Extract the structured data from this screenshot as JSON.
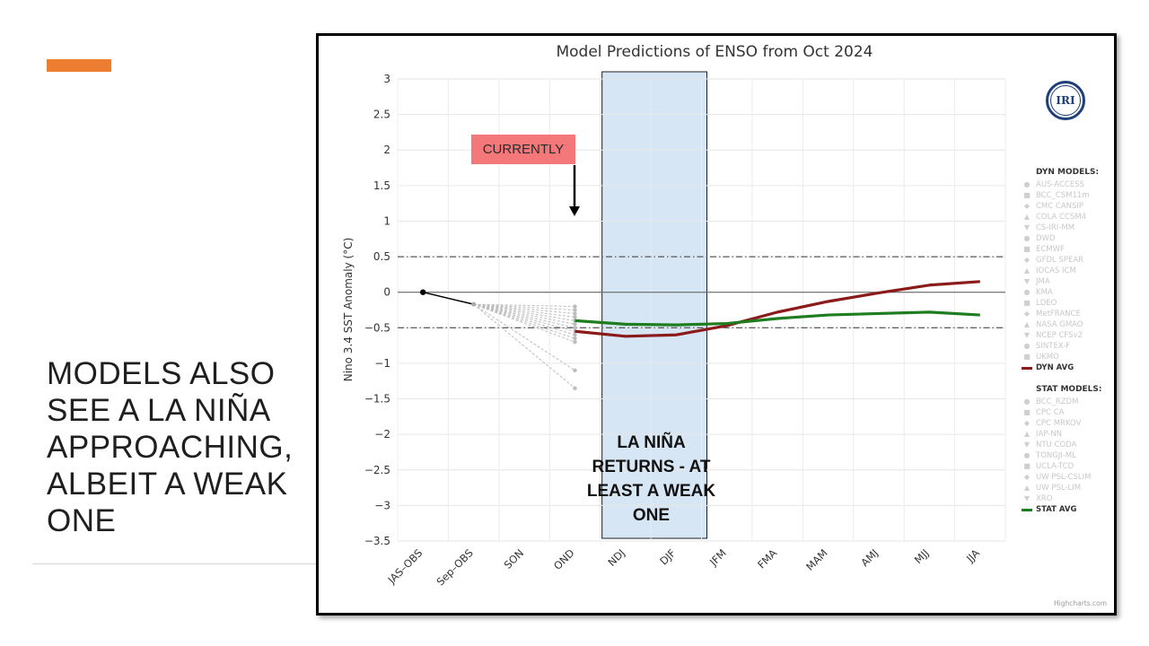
{
  "slide": {
    "title": "MODELS ALSO SEE A LA NIÑA APPROACHING, ALBEIT A WEAK ONE",
    "accent_color": "#ed7d31"
  },
  "callouts": {
    "currently": "CURRENTLY",
    "la_nina": "LA NIÑA RETURNS - AT LEAST A WEAK ONE",
    "currently_color": "#f4777a",
    "highlight_color": "#d6e6f4"
  },
  "logo": {
    "text": "IRI",
    "icon": "iri-logo-icon"
  },
  "credits": "Highcharts.com",
  "chart_data": {
    "type": "line",
    "title": "Model Predictions of ENSO from Oct 2024",
    "ylabel": "Nino 3.4 SST Anomaly (°C)",
    "xlabel": "",
    "categories": [
      "JAS–OBS",
      "Sep–OBS",
      "SON",
      "OND",
      "NDJ",
      "DJF",
      "JFM",
      "FMA",
      "MAM",
      "AMJ",
      "MJJ",
      "JJA"
    ],
    "ylim": [
      -3.5,
      3
    ],
    "yticks": [
      3,
      2.5,
      2,
      1.5,
      1,
      0.5,
      0,
      -0.5,
      -1,
      -1.5,
      -2,
      -2.5,
      -3,
      -3.5
    ],
    "threshold_lines": [
      0.5,
      -0.5
    ],
    "grid": true,
    "highlight_range": [
      "NDJ",
      "JFM"
    ],
    "observed": {
      "name": "",
      "x": [
        "JAS–OBS",
        "Sep–OBS"
      ],
      "values": [
        0.0,
        -0.17
      ],
      "color": "#000000"
    },
    "series": [
      {
        "name": "DYN AVG",
        "color": "#8b1a1a",
        "x": [
          "OND",
          "NDJ",
          "DJF",
          "JFM",
          "FMA",
          "MAM",
          "AMJ",
          "MJJ",
          "JJA"
        ],
        "values": [
          -0.55,
          -0.62,
          -0.6,
          -0.47,
          -0.28,
          -0.13,
          -0.01,
          0.1,
          0.15
        ]
      },
      {
        "name": "STAT AVG",
        "color": "#1e7d1e",
        "x": [
          "OND",
          "NDJ",
          "DJF",
          "JFM",
          "FMA",
          "MAM",
          "AMJ",
          "MJJ",
          "JJA"
        ],
        "values": [
          -0.4,
          -0.45,
          -0.46,
          -0.44,
          -0.37,
          -0.32,
          -0.3,
          -0.28,
          -0.32
        ]
      }
    ],
    "model_plumes_ond": [
      -0.2,
      -0.25,
      -0.3,
      -0.35,
      -0.4,
      -0.45,
      -0.5,
      -0.55,
      -0.6,
      -0.65,
      -0.7,
      -1.1,
      -1.35
    ],
    "legend": {
      "position": "right",
      "dyn_header": "DYN MODELS:",
      "dyn_models": [
        "AUS-ACCESS",
        "BCC_CSM11m",
        "CMC CANSIP",
        "COLA CCSM4",
        "CS-IRI-MM",
        "DWD",
        "ECMWF",
        "GFDL SPEAR",
        "IOCAS ICM",
        "JMA",
        "KMA",
        "LDEO",
        "MetFRANCE",
        "NASA GMAO",
        "NCEP CFSv2",
        "SINTEX-F",
        "UKMO"
      ],
      "dyn_avg": "DYN AVG",
      "stat_header": "STAT MODELS:",
      "stat_models": [
        "BCC_RZDM",
        "CPC CA",
        "CPC MRKOV",
        "IAP-NN",
        "NTU CODA",
        "TONGJI-ML",
        "UCLA-TCD",
        "UW PSL-CSLIM",
        "UW PSL-LIM",
        "XRO"
      ],
      "stat_avg": "STAT AVG"
    }
  }
}
